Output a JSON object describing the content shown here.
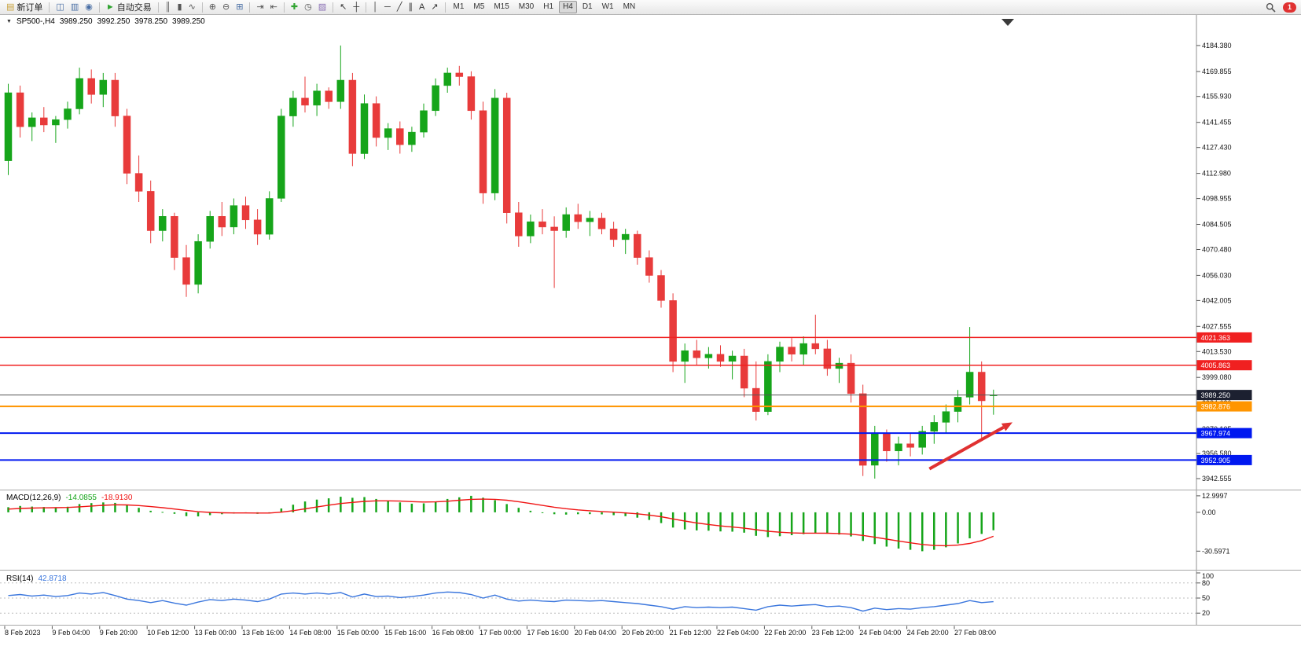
{
  "toolbar": {
    "groups": [
      {
        "buttons": [
          {
            "name": "new-order-button",
            "icon": "new-order-icon",
            "glyph": "▤",
            "glyph_color": "#c8a23c",
            "label": "新订单"
          }
        ]
      },
      {
        "buttons": [
          {
            "name": "chart-window-button",
            "icon": "chart-window-icon",
            "glyph": "◫",
            "glyph_color": "#4a6fa5"
          },
          {
            "name": "market-watch-button",
            "icon": "market-watch-icon",
            "glyph": "▥",
            "glyph_color": "#4a6fa5"
          },
          {
            "name": "navigator-button",
            "icon": "navigator-icon",
            "glyph": "◉",
            "glyph_color": "#4a6fa5"
          }
        ]
      },
      {
        "buttons": [
          {
            "name": "auto-trading-button",
            "icon": "play-icon",
            "glyph": "►",
            "glyph_color": "#31a431",
            "label": "自动交易"
          }
        ]
      },
      {
        "buttons": [
          {
            "name": "bar-chart-button",
            "icon": "ohlc-bars-icon",
            "glyph": "║",
            "glyph_color": "#555555"
          },
          {
            "name": "candlestick-button",
            "icon": "candlestick-icon",
            "glyph": "▮",
            "glyph_color": "#555555"
          },
          {
            "name": "line-chart-button",
            "icon": "line-chart-icon",
            "glyph": "∿",
            "glyph_color": "#555555"
          }
        ]
      },
      {
        "buttons": [
          {
            "name": "zoom-in-button",
            "icon": "zoom-in-icon",
            "glyph": "⊕",
            "glyph_color": "#555555"
          },
          {
            "name": "zoom-out-button",
            "icon": "zoom-out-icon",
            "glyph": "⊖",
            "glyph_color": "#555555"
          },
          {
            "name": "tile-windows-button",
            "icon": "grid-icon",
            "glyph": "⊞",
            "glyph_color": "#4a6fa5"
          }
        ]
      },
      {
        "buttons": [
          {
            "name": "auto-scroll-button",
            "icon": "auto-scroll-icon",
            "glyph": "⇥",
            "glyph_color": "#555555"
          },
          {
            "name": "chart-shift-button",
            "icon": "chart-shift-icon",
            "glyph": "⇤",
            "glyph_color": "#555555"
          }
        ]
      },
      {
        "buttons": [
          {
            "name": "indicators-button",
            "icon": "plus-icon",
            "glyph": "✚",
            "glyph_color": "#31a431"
          },
          {
            "name": "periods-button",
            "icon": "clock-icon",
            "glyph": "◷",
            "glyph_color": "#555555"
          },
          {
            "name": "templates-button",
            "icon": "template-icon",
            "glyph": "▨",
            "glyph_color": "#8a6fb5"
          }
        ]
      },
      {
        "buttons": [
          {
            "name": "cursor-button",
            "icon": "cursor-icon",
            "glyph": "↖",
            "glyph_color": "#333333"
          },
          {
            "name": "crosshair-button",
            "icon": "crosshair-icon",
            "glyph": "┼",
            "glyph_color": "#333333"
          }
        ]
      },
      {
        "buttons": [
          {
            "name": "vertical-line-button",
            "icon": "vertical-line-icon",
            "glyph": "│",
            "glyph_color": "#333333"
          },
          {
            "name": "horizontal-line-button",
            "icon": "horizontal-line-icon",
            "glyph": "─",
            "glyph_color": "#333333"
          },
          {
            "name": "trendline-button",
            "icon": "trendline-icon",
            "glyph": "╱",
            "glyph_color": "#333333"
          },
          {
            "name": "channel-button",
            "icon": "channel-icon",
            "glyph": "∥",
            "glyph_color": "#333333"
          },
          {
            "name": "text-button",
            "icon": "text-icon",
            "glyph": "A",
            "glyph_color": "#333333"
          },
          {
            "name": "arrows-button",
            "icon": "arrow-icon",
            "glyph": "↗",
            "glyph_color": "#333333"
          }
        ]
      }
    ],
    "timeframes": [
      "M1",
      "M5",
      "M15",
      "M30",
      "H1",
      "H4",
      "D1",
      "W1",
      "MN"
    ],
    "active_timeframe": "H4",
    "notification_count": "1"
  },
  "symbol_bar": {
    "symbol": "SP500-,H4",
    "open": "3989.250",
    "high": "3992.250",
    "low": "3978.250",
    "close": "3989.250"
  },
  "indicators": {
    "macd": {
      "label": "MACD(12,26,9)",
      "main_value": "-14.0855",
      "signal_value": "-18.9130"
    },
    "rsi": {
      "label": "RSI(14)",
      "value": "42.8718"
    }
  },
  "colors": {
    "bull": "#16a51a",
    "bear": "#e83b3b",
    "macd_hist": "#16a51a",
    "macd_signal": "#f01515",
    "rsi_line": "#3a76dd",
    "line_red": "#f02020",
    "line_orange": "#ff9500",
    "line_blue": "#0018f0",
    "current_price_line": "#555555",
    "current_price_badge": "#1c2030"
  },
  "chart_data": [
    {
      "type": "candlestick",
      "symbol": "SP500-",
      "timeframe": "H4",
      "ohlc": [
        [
          4120,
          4163,
          4112,
          4158
        ],
        [
          4158,
          4162,
          4133,
          4139
        ],
        [
          4139,
          4147,
          4131,
          4144
        ],
        [
          4144,
          4150,
          4136,
          4140
        ],
        [
          4140,
          4145,
          4130,
          4143
        ],
        [
          4143,
          4153,
          4138,
          4149
        ],
        [
          4149,
          4172,
          4146,
          4166
        ],
        [
          4166,
          4171,
          4152,
          4157
        ],
        [
          4157,
          4169,
          4150,
          4165
        ],
        [
          4165,
          4169,
          4139,
          4145
        ],
        [
          4145,
          4149,
          4107,
          4113
        ],
        [
          4113,
          4123,
          4097,
          4103
        ],
        [
          4103,
          4109,
          4074,
          4081
        ],
        [
          4081,
          4093,
          4075,
          4089
        ],
        [
          4089,
          4091,
          4059,
          4066
        ],
        [
          4066,
          4073,
          4044,
          4051
        ],
        [
          4051,
          4079,
          4046,
          4075
        ],
        [
          4075,
          4092,
          4071,
          4089
        ],
        [
          4089,
          4097,
          4078,
          4083
        ],
        [
          4083,
          4099,
          4079,
          4095
        ],
        [
          4095,
          4100,
          4082,
          4087
        ],
        [
          4087,
          4093,
          4073,
          4079
        ],
        [
          4079,
          4103,
          4076,
          4099
        ],
        [
          4099,
          4149,
          4097,
          4145
        ],
        [
          4145,
          4159,
          4139,
          4155
        ],
        [
          4155,
          4167,
          4147,
          4151
        ],
        [
          4151,
          4163,
          4145,
          4159
        ],
        [
          4159,
          4161,
          4149,
          4153
        ],
        [
          4153,
          4184.38,
          4149,
          4165
        ],
        [
          4165,
          4169,
          4117,
          4124
        ],
        [
          4124,
          4157,
          4121,
          4152
        ],
        [
          4152,
          4156,
          4128,
          4133
        ],
        [
          4133,
          4141,
          4126,
          4138
        ],
        [
          4138,
          4142,
          4124,
          4129
        ],
        [
          4129,
          4139,
          4125,
          4136
        ],
        [
          4136,
          4152,
          4133,
          4148
        ],
        [
          4148,
          4166,
          4145,
          4162
        ],
        [
          4162,
          4172,
          4158,
          4169
        ],
        [
          4169,
          4173,
          4162,
          4167
        ],
        [
          4167,
          4170,
          4143,
          4148
        ],
        [
          4148,
          4153,
          4096,
          4102
        ],
        [
          4102,
          4160,
          4098,
          4155
        ],
        [
          4155,
          4158,
          4085,
          4091
        ],
        [
          4091,
          4097,
          4072,
          4078
        ],
        [
          4078,
          4090,
          4074,
          4086
        ],
        [
          4086,
          4093,
          4079,
          4083
        ],
        [
          4083,
          4089,
          4049,
          4081
        ],
        [
          4081,
          4094,
          4077,
          4090
        ],
        [
          4090,
          4096,
          4082,
          4086
        ],
        [
          4086,
          4092,
          4078,
          4088
        ],
        [
          4088,
          4091,
          4079,
          4082
        ],
        [
          4082,
          4086,
          4072,
          4076
        ],
        [
          4076,
          4082,
          4068,
          4079
        ],
        [
          4079,
          4081,
          4062,
          4066
        ],
        [
          4066,
          4070,
          4052,
          4056
        ],
        [
          4056,
          4059,
          4038,
          4042
        ],
        [
          4042,
          4046,
          4002,
          4008
        ],
        [
          4008,
          4018,
          3996,
          4014
        ],
        [
          4014,
          4020,
          4006,
          4010
        ],
        [
          4010,
          4016,
          4004,
          4012
        ],
        [
          4012,
          4017,
          4005,
          4008
        ],
        [
          4008,
          4014,
          3998,
          4011
        ],
        [
          4011,
          4015,
          3988,
          3993
        ],
        [
          3993,
          4008,
          3975,
          3980
        ],
        [
          3980,
          4012,
          3978,
          4008
        ],
        [
          4008,
          4019,
          4002,
          4016
        ],
        [
          4016,
          4021,
          4008,
          4012
        ],
        [
          4012,
          4022,
          4006,
          4018
        ],
        [
          4018,
          4034,
          4012,
          4015
        ],
        [
          4015,
          4020,
          4000,
          4004
        ],
        [
          4004,
          4010,
          3996,
          4007
        ],
        [
          4007,
          4012,
          3985,
          3990
        ],
        [
          3990,
          3995,
          3944,
          3950
        ],
        [
          3950,
          3972,
          3942.56,
          3968
        ],
        [
          3968,
          3970,
          3952,
          3958
        ],
        [
          3958,
          3966,
          3950,
          3962
        ],
        [
          3962,
          3968,
          3955,
          3960
        ],
        [
          3960,
          3972,
          3956,
          3969
        ],
        [
          3969,
          3978,
          3962,
          3974
        ],
        [
          3974,
          3984,
          3968,
          3980
        ],
        [
          3980,
          3992,
          3974,
          3988
        ],
        [
          3988,
          4027.2,
          3984,
          4002
        ],
        [
          4002,
          4008,
          3964,
          3986
        ],
        [
          3989.25,
          3992.25,
          3978.25,
          3989.25
        ]
      ],
      "price_axis_ticks": [
        "4184.380",
        "4169.855",
        "4155.930",
        "4141.455",
        "4127.430",
        "4112.980",
        "4098.955",
        "4084.505",
        "4070.480",
        "4056.030",
        "4042.005",
        "4027.555",
        "4013.530",
        "3999.080",
        "3984.630",
        "3970.105",
        "3956.580",
        "3942.555"
      ],
      "hlines": [
        {
          "price": 4021.363,
          "label": "4021.363",
          "color": "#f02020",
          "width": 1.5
        },
        {
          "price": 4005.863,
          "label": "4005.863",
          "color": "#f02020",
          "width": 1.5
        },
        {
          "price": 3989.25,
          "label": "3989.250",
          "color": "#555555",
          "width": 1,
          "badge_color": "#1c2030",
          "role": "current-price"
        },
        {
          "price": 3982.876,
          "label": "3982.876",
          "color": "#ff9500",
          "width": 2
        },
        {
          "price": 3967.974,
          "label": "3967.974",
          "color": "#0018f0",
          "width": 2
        },
        {
          "price": 3952.905,
          "label": "3952.905",
          "color": "#0018f0",
          "width": 2
        }
      ],
      "arrow": {
        "from_index": 77.6,
        "from_price": 3948,
        "to_index": 84.6,
        "to_price": 3974,
        "color": "#e03131",
        "width": 4
      },
      "time_axis_labels": [
        "8 Feb 2023",
        "9 Feb 04:00",
        "9 Feb 20:00",
        "10 Feb 12:00",
        "13 Feb 00:00",
        "13 Feb 16:00",
        "14 Feb 08:00",
        "15 Feb 00:00",
        "15 Feb 16:00",
        "16 Feb 08:00",
        "17 Feb 00:00",
        "17 Feb 16:00",
        "20 Feb 04:00",
        "20 Feb 20:00",
        "21 Feb 12:00",
        "22 Feb 04:00",
        "22 Feb 20:00",
        "23 Feb 12:00",
        "24 Feb 04:00",
        "24 Feb 20:00",
        "27 Feb 08:00"
      ]
    },
    {
      "type": "bar",
      "name": "MACD(12,26,9)",
      "histogram": [
        4,
        5,
        4.5,
        4.2,
        4,
        4.4,
        6.5,
        7.2,
        7.8,
        7.4,
        5.5,
        3.5,
        1.2,
        0.3,
        -1.2,
        -3,
        -3.2,
        -2.2,
        -1.5,
        -0.9,
        -0.7,
        -1.2,
        -0.3,
        3,
        6,
        8.5,
        10,
        11,
        12.2,
        11.4,
        12,
        10.5,
        9,
        7.8,
        6.8,
        7,
        8.5,
        10.5,
        11.8,
        12.9997,
        11.5,
        9.5,
        6.5,
        3.5,
        1.2,
        -0.5,
        -1.5,
        -1.8,
        -1.5,
        -1.4,
        -1.6,
        -2.2,
        -3,
        -4.2,
        -6,
        -8.5,
        -12,
        -13.5,
        -14.2,
        -14.5,
        -15,
        -15.2,
        -16,
        -18.5,
        -19.5,
        -18.8,
        -18,
        -17.2,
        -16.5,
        -16.8,
        -17.5,
        -19,
        -22.5,
        -25,
        -27,
        -28.5,
        -29.5,
        -30.5971,
        -29.5,
        -27.5,
        -24.5,
        -20.5,
        -17,
        -14.0855
      ],
      "signal": [
        2.5,
        3,
        3.3,
        3.5,
        3.6,
        3.8,
        4.3,
        4.9,
        5.5,
        5.9,
        5.8,
        5.3,
        4.5,
        3.6,
        2.6,
        1.5,
        0.5,
        -0.1,
        -0.4,
        -0.5,
        -0.5,
        -0.6,
        -0.6,
        0.1,
        1.3,
        2.7,
        4.2,
        5.6,
        6.9,
        7.8,
        8.6,
        9,
        9,
        8.8,
        8.4,
        8.1,
        8.2,
        8.7,
        9.5,
        10.2,
        10.4,
        10.2,
        9.5,
        8.3,
        6.9,
        5.4,
        4,
        2.8,
        1.9,
        1.2,
        0.6,
        0.1,
        -0.5,
        -1.2,
        -2.2,
        -3.5,
        -5.2,
        -6.9,
        -8.4,
        -9.6,
        -10.7,
        -11.6,
        -12.5,
        -13.7,
        -14.9,
        -15.7,
        -16.2,
        -16.4,
        -16.4,
        -16.5,
        -16.7,
        -17.2,
        -18.2,
        -19.6,
        -21.1,
        -22.6,
        -24,
        -25.3,
        -26.1,
        -26.3,
        -25.8,
        -24.5,
        -22.3,
        -18.913
      ],
      "axis_ticks": [
        {
          "value": 12.9997,
          "label": "12.9997"
        },
        {
          "value": 0,
          "label": "0.00"
        },
        {
          "value": -30.5971,
          "label": "-30.5971"
        }
      ]
    },
    {
      "type": "line",
      "name": "RSI(14)",
      "values": [
        55,
        57,
        54,
        56,
        53,
        55,
        60,
        58,
        61,
        55,
        48,
        45,
        41,
        45,
        40,
        36,
        42,
        47,
        45,
        48,
        46,
        43,
        48,
        58,
        60,
        58,
        60,
        58,
        61,
        52,
        58,
        53,
        54,
        51,
        53,
        56,
        60,
        62,
        61,
        57,
        50,
        56,
        48,
        44,
        46,
        44,
        43,
        46,
        45,
        44,
        45,
        43,
        41,
        39,
        36,
        33,
        28,
        33,
        31,
        32,
        31,
        32,
        29,
        26,
        33,
        36,
        34,
        36,
        37,
        33,
        34,
        31,
        24,
        30,
        27,
        29,
        28,
        31,
        33,
        36,
        39,
        45,
        41,
        42.8718
      ],
      "range": [
        0,
        100
      ],
      "levels": [
        80,
        50,
        20
      ],
      "axis_ticks": [
        {
          "value": 100,
          "label": "100"
        },
        {
          "value": 80,
          "label": "80"
        },
        {
          "value": 50,
          "label": "50"
        },
        {
          "value": 20,
          "label": "20"
        }
      ]
    }
  ]
}
